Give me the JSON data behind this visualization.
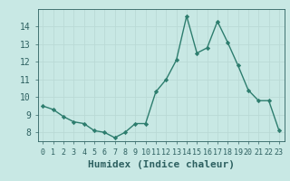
{
  "x": [
    0,
    1,
    2,
    3,
    4,
    5,
    6,
    7,
    8,
    9,
    10,
    11,
    12,
    13,
    14,
    15,
    16,
    17,
    18,
    19,
    20,
    21,
    22,
    23
  ],
  "y": [
    9.5,
    9.3,
    8.9,
    8.6,
    8.5,
    8.1,
    8.0,
    7.7,
    8.0,
    8.5,
    8.5,
    10.3,
    11.0,
    12.1,
    14.6,
    12.5,
    12.8,
    14.3,
    13.1,
    11.8,
    10.4,
    9.8,
    9.8,
    8.1
  ],
  "xlabel": "Humidex (Indice chaleur)",
  "xlim": [
    -0.5,
    23.5
  ],
  "ylim": [
    7.5,
    15.0
  ],
  "yticks": [
    8,
    9,
    10,
    11,
    12,
    13,
    14
  ],
  "xticks": [
    0,
    1,
    2,
    3,
    4,
    5,
    6,
    7,
    8,
    9,
    10,
    11,
    12,
    13,
    14,
    15,
    16,
    17,
    18,
    19,
    20,
    21,
    22,
    23
  ],
  "line_color": "#2d7d6e",
  "marker": "D",
  "marker_size": 2.2,
  "bg_color": "#c8e8e4",
  "grid_color": "#b8d8d4",
  "tick_label_color": "#2d6060",
  "xlabel_fontsize": 8,
  "tick_fontsize": 6,
  "ytick_fontsize": 7
}
